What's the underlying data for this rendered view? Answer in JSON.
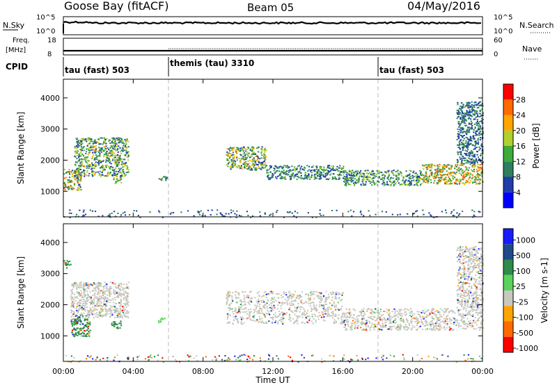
{
  "header": {
    "station": "Goose Bay (fitACF)",
    "beam": "Beam 05",
    "date": "04/May/2016"
  },
  "noise_panel": {
    "left_label": "N.Sky",
    "right_label": "N.Search",
    "left_ticks": [
      "10^5",
      "10^0"
    ],
    "right_ticks": [
      "10^5",
      "10^0"
    ]
  },
  "freq_panel": {
    "left_label_line1": "Freq.",
    "left_label_line2": "[MHz]",
    "left_ticks": [
      "18",
      "8"
    ],
    "right_label": "Nave",
    "right_ticks": [
      "60",
      "0"
    ]
  },
  "cpid": {
    "label": "CPID",
    "segments": [
      {
        "start_hour": 0,
        "text": "tau (fast) 503"
      },
      {
        "start_hour": 6,
        "text": "themis (tau) 3310"
      },
      {
        "start_hour": 18,
        "text": "tau (fast) 503"
      }
    ]
  },
  "colors": {
    "power_bar": [
      "#0000ff",
      "#1f3da8",
      "#2f7f5f",
      "#3caa3c",
      "#b0d030",
      "#ffa500",
      "#ff6a00",
      "#ff0000"
    ],
    "velocity_bar": [
      "#1a1aff",
      "#1f4a8a",
      "#2e8b4a",
      "#5bd25b",
      "#c8c8c0",
      "#ffa500",
      "#ff6a00",
      "#ff0000"
    ]
  },
  "chart_data": [
    {
      "type": "heatmap",
      "panel": "power",
      "xlabel": "Time UT",
      "ylabel": "Slant Range [km]",
      "x_ticks": [
        "00:00",
        "04:00",
        "08:00",
        "12:00",
        "16:00",
        "20:00",
        "00:00"
      ],
      "x_range_hours": [
        0,
        24
      ],
      "y_ticks": [
        1000,
        2000,
        3000,
        4000
      ],
      "ylim": [
        180,
        4600
      ],
      "colorbar_label": "Power [dB]",
      "colorbar_ticks": [
        "4",
        "8",
        "12",
        "16",
        "20",
        "24",
        "28"
      ],
      "colorbar_range": [
        0,
        30
      ],
      "dashed_vertical_lines_hours": [
        6,
        18
      ],
      "scatter_regions": [
        {
          "t0": 0.0,
          "t1": 1.0,
          "r0": 1050,
          "r1": 1750,
          "min": 6,
          "max": 26
        },
        {
          "t0": 0.6,
          "t1": 3.7,
          "r0": 1500,
          "r1": 2750,
          "min": 4,
          "max": 20
        },
        {
          "t0": 2.8,
          "t1": 3.3,
          "r0": 1250,
          "r1": 1500,
          "min": 8,
          "max": 24
        },
        {
          "t0": 5.4,
          "t1": 5.9,
          "r0": 1350,
          "r1": 1500,
          "min": 6,
          "max": 14
        },
        {
          "t0": 9.3,
          "t1": 11.6,
          "r0": 1700,
          "r1": 2450,
          "min": 4,
          "max": 22
        },
        {
          "t0": 11.6,
          "t1": 16.0,
          "r0": 1400,
          "r1": 1850,
          "min": 4,
          "max": 16
        },
        {
          "t0": 16.0,
          "t1": 20.5,
          "r0": 1200,
          "r1": 1700,
          "min": 4,
          "max": 18
        },
        {
          "t0": 20.5,
          "t1": 24.0,
          "r0": 1250,
          "r1": 1900,
          "min": 8,
          "max": 26
        },
        {
          "t0": 22.5,
          "t1": 24.0,
          "r0": 1900,
          "r1": 3900,
          "min": 4,
          "max": 12
        },
        {
          "t0": 0.0,
          "t1": 24.0,
          "r0": 180,
          "r1": 420,
          "min": 4,
          "max": 10
        }
      ]
    },
    {
      "type": "heatmap",
      "panel": "velocity",
      "xlabel": "Time UT",
      "ylabel": "Slant Range [km]",
      "x_ticks": [
        "00:00",
        "04:00",
        "08:00",
        "12:00",
        "16:00",
        "20:00",
        "00:00"
      ],
      "x_range_hours": [
        0,
        24
      ],
      "y_ticks": [
        1000,
        2000,
        3000,
        4000
      ],
      "ylim": [
        180,
        4600
      ],
      "colorbar_label": "Velocity [m s-1]",
      "colorbar_ticks": [
        "1000",
        "500",
        "100",
        "25",
        "-25",
        "-100",
        "-500",
        "-1000"
      ],
      "dashed_vertical_lines_hours": [
        6,
        18
      ],
      "scatter_regions": [
        {
          "t0": 0.0,
          "t1": 0.4,
          "r0": 3200,
          "r1": 3450,
          "bin": 2
        },
        {
          "t0": 0.4,
          "t1": 1.5,
          "r0": 1000,
          "r1": 1700,
          "bin": 2
        },
        {
          "t0": 0.4,
          "t1": 3.7,
          "r0": 1600,
          "r1": 2750,
          "bin": 4
        },
        {
          "t0": 2.7,
          "t1": 3.3,
          "r0": 1250,
          "r1": 1500,
          "bin": 2
        },
        {
          "t0": 5.4,
          "t1": 5.8,
          "r0": 1450,
          "r1": 1600,
          "bin": 3
        },
        {
          "t0": 9.3,
          "t1": 16.0,
          "r0": 1400,
          "r1": 2450,
          "bin": 4
        },
        {
          "t0": 16.0,
          "t1": 24.0,
          "r0": 1200,
          "r1": 1900,
          "bin": 4
        },
        {
          "t0": 22.5,
          "t1": 24.0,
          "r0": 1900,
          "r1": 3900,
          "bin": 4
        },
        {
          "t0": 0.0,
          "t1": 24.0,
          "r0": 180,
          "r1": 420,
          "bin": 0
        }
      ]
    }
  ]
}
